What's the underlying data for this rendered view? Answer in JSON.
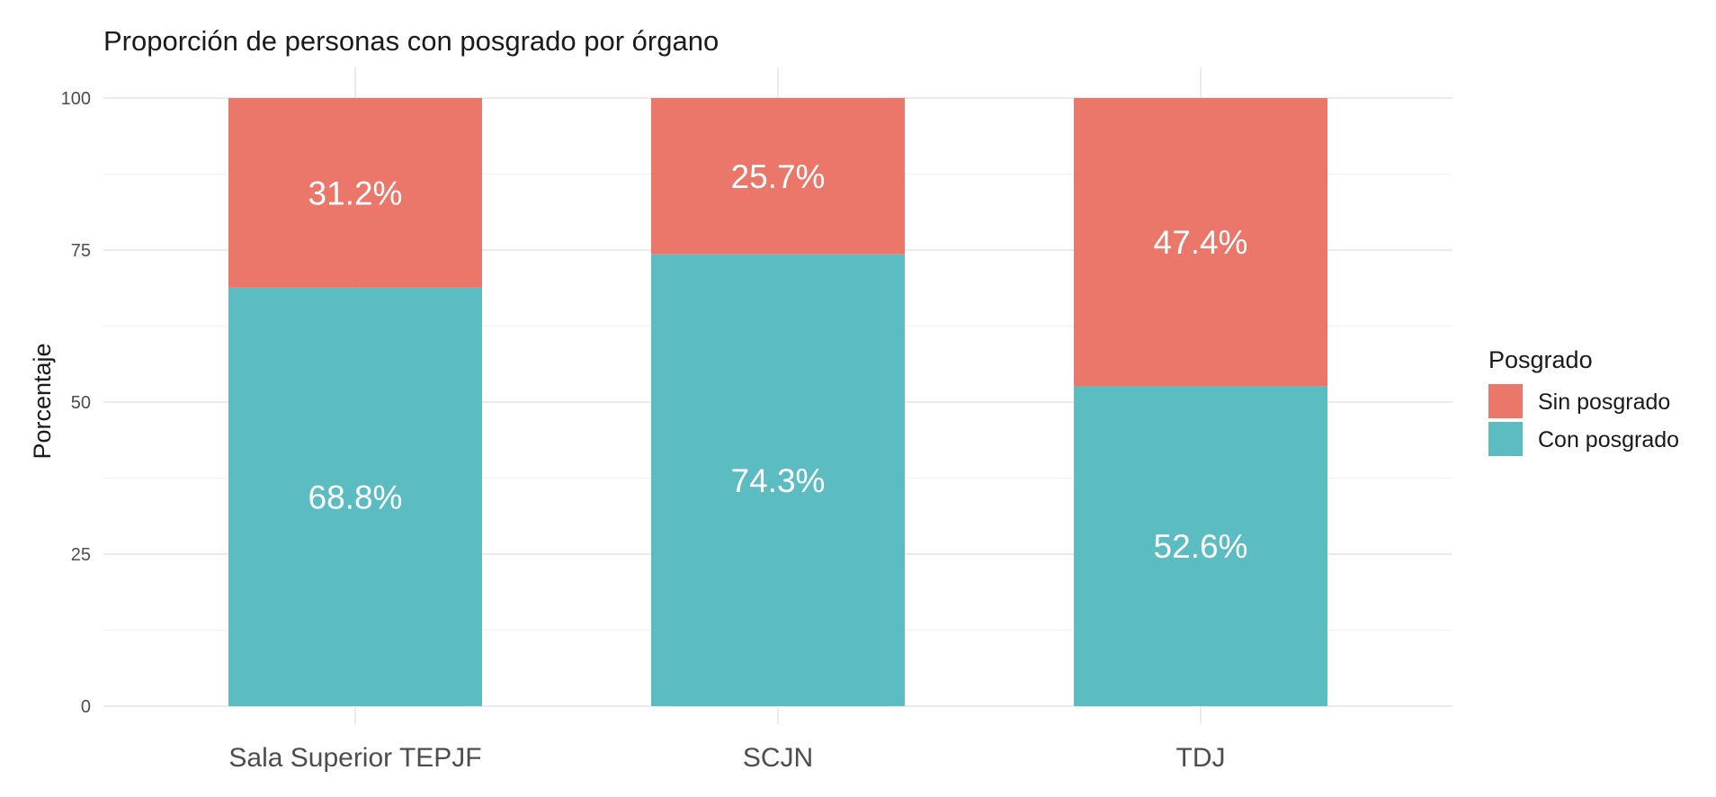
{
  "chart_data": {
    "type": "bar",
    "stacked": true,
    "title": "Proporción de personas con posgrado por órgano",
    "xlabel": "",
    "ylabel": "Porcentaje",
    "ylim": [
      0,
      100
    ],
    "yticks": [
      "0",
      "25",
      "50",
      "75",
      "100"
    ],
    "grid": true,
    "categories": [
      "Sala Superior TEPJF",
      "SCJN",
      "TDJ"
    ],
    "series": [
      {
        "name": "Con posgrado",
        "color": "#5BBCC2",
        "values": [
          68.8,
          74.3,
          52.6
        ],
        "labels": [
          "68.8%",
          "74.3%",
          "52.6%"
        ]
      },
      {
        "name": "Sin posgrado",
        "color": "#EB776A",
        "values": [
          31.2,
          25.7,
          47.4
        ],
        "labels": [
          "31.2%",
          "25.7%",
          "47.4%"
        ]
      }
    ],
    "legend": {
      "title": "Posgrado",
      "placement": "right",
      "order": [
        "Sin posgrado",
        "Con posgrado"
      ]
    }
  }
}
